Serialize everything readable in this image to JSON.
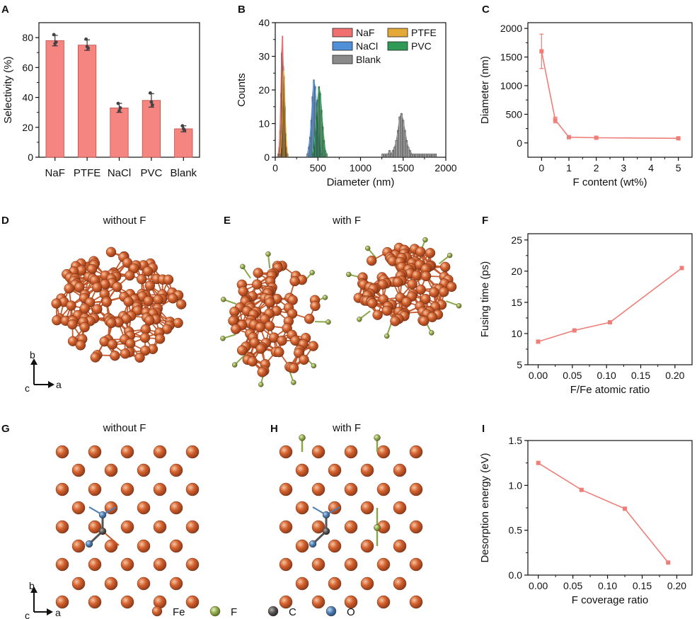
{
  "colors": {
    "bar": "#f58580",
    "line": "#ef7d78",
    "fe": "#c95a2e",
    "f": "#8aa84a",
    "c": "#505050",
    "o": "#4b7fb5",
    "naf": "#f07070",
    "nacl": "#4f8fd8",
    "ptfe": "#e3a836",
    "pvc": "#2e9a56",
    "blank": "#8a8a8a"
  },
  "panel_labels": {
    "A": "A",
    "B": "B",
    "C": "C",
    "D": "D",
    "E": "E",
    "F": "F",
    "G": "G",
    "H": "H",
    "I": "I"
  },
  "subtitles": {
    "d": "without F",
    "e": "with F",
    "g": "without F",
    "h": "with F"
  },
  "axes_glyphs": {
    "b": "b",
    "a": "a",
    "c": "c"
  },
  "atom_legend": [
    {
      "label": "Fe",
      "color": "#c95a2e"
    },
    {
      "label": "F",
      "color": "#8aa84a"
    },
    {
      "label": "C",
      "color": "#505050"
    },
    {
      "label": "O",
      "color": "#4b7fb5"
    }
  ],
  "chart_data": [
    {
      "id": "A",
      "type": "bar",
      "categories": [
        "NaF",
        "PTFE",
        "NaCl",
        "PVC",
        "Blank"
      ],
      "values": [
        78,
        75,
        33,
        38,
        19
      ],
      "errors": [
        3.5,
        3.5,
        3,
        4.5,
        2
      ],
      "points": [
        [
          82,
          76,
          77
        ],
        [
          79,
          74,
          73
        ],
        [
          36,
          31,
          33
        ],
        [
          43,
          37,
          35
        ],
        [
          21,
          19,
          18
        ]
      ],
      "ylabel": "Selectivity (%)",
      "xlabel": "",
      "ylim": [
        0,
        90
      ],
      "yticks": [
        0,
        20,
        40,
        60,
        80
      ]
    },
    {
      "id": "B",
      "type": "bar",
      "subtype": "histogram",
      "xlabel": "Diameter (nm)",
      "ylabel": "Counts",
      "xlim": [
        0,
        2000
      ],
      "ylim": [
        0,
        40
      ],
      "xticks": [
        0,
        500,
        1000,
        1500,
        2000
      ],
      "yticks": [
        0,
        10,
        20,
        30,
        40
      ],
      "series": [
        {
          "name": "NaF",
          "color": "#f07070",
          "bin_start": 30,
          "bin_width": 10,
          "counts": [
            1,
            3,
            8,
            19,
            31,
            36,
            27,
            15,
            6,
            2,
            1
          ]
        },
        {
          "name": "PTFE",
          "color": "#e3a836",
          "bin_start": 50,
          "bin_width": 10,
          "counts": [
            1,
            3,
            8,
            16,
            26,
            24,
            15,
            7,
            3,
            1
          ]
        },
        {
          "name": "NaCl",
          "color": "#4f8fd8",
          "bin_start": 370,
          "bin_width": 15,
          "counts": [
            1,
            3,
            6,
            11,
            18,
            23,
            21,
            16,
            10,
            5,
            2,
            1
          ]
        },
        {
          "name": "PVC",
          "color": "#2e9a56",
          "bin_start": 430,
          "bin_width": 15,
          "counts": [
            1,
            3,
            7,
            12,
            17,
            21,
            19,
            14,
            9,
            5,
            2,
            1
          ]
        },
        {
          "name": "Blank",
          "color": "#8a8a8a",
          "bin_start": 1250,
          "bin_width": 20,
          "counts": [
            1,
            1,
            1,
            1,
            2,
            1,
            2,
            3,
            5,
            8,
            12,
            13,
            11,
            8,
            5,
            3,
            2,
            1,
            1,
            1,
            1,
            1,
            1,
            1,
            1,
            1,
            1,
            1,
            1,
            1,
            1,
            1
          ]
        }
      ],
      "legend": [
        [
          "NaF",
          "PTFE"
        ],
        [
          "NaCl",
          "PVC"
        ],
        [
          "Blank"
        ]
      ]
    },
    {
      "id": "C",
      "type": "line",
      "x": [
        0,
        0.5,
        1,
        2,
        5
      ],
      "y": [
        1600,
        400,
        100,
        90,
        80
      ],
      "yerr": [
        300,
        50,
        20,
        15,
        20
      ],
      "xlabel": "F content (wt%)",
      "ylabel": "Diameter (nm)",
      "xlim": [
        -0.5,
        5.5
      ],
      "ylim": [
        -250,
        2100
      ],
      "xticks": [
        0,
        1,
        2,
        3,
        4,
        5
      ],
      "yticks": [
        0,
        500,
        1000,
        1500,
        2000
      ]
    },
    {
      "id": "F",
      "type": "line",
      "x": [
        0,
        0.053,
        0.105,
        0.21
      ],
      "y": [
        8.7,
        10.5,
        11.8,
        20.5
      ],
      "xlabel": "F/Fe atomic ratio",
      "ylabel": "Fusing time (ps)",
      "xlim": [
        -0.015,
        0.225
      ],
      "ylim": [
        5,
        26
      ],
      "xticks": [
        "0.00",
        "0.05",
        "0.10",
        "0.15",
        "0.20"
      ],
      "yticks": [
        5,
        10,
        15,
        20,
        25
      ]
    },
    {
      "id": "I",
      "type": "line",
      "x": [
        0,
        0.0625,
        0.125,
        0.1875
      ],
      "y": [
        1.25,
        0.95,
        0.74,
        0.14
      ],
      "xlabel": "F coverage ratio",
      "ylabel": "Desorption energy (eV)",
      "xlim": [
        -0.015,
        0.222
      ],
      "ylim": [
        0,
        1.5
      ],
      "xticks": [
        "0.00",
        "0.05",
        "0.10",
        "0.15",
        "0.20"
      ],
      "yticks": [
        "0.0",
        "0.5",
        "1.0",
        "1.5"
      ]
    }
  ]
}
